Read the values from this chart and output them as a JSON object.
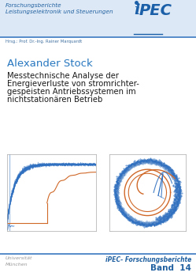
{
  "bg_color": "#ffffff",
  "header_bg": "#dce8f5",
  "header_text1": "Forschungsberichte",
  "header_text2": "Leistungselektronik und Steuerungen",
  "header_color": "#2060a0",
  "hrsg_text": "Hrsg.: Prof. Dr.-Ing. Rainer Marquardt",
  "hrsg_color": "#4070a0",
  "author": "Alexander Stock",
  "author_color": "#2878c0",
  "title_line1": "Messtechnische Analyse der",
  "title_line2": "Energieverluste von stromrichter-",
  "title_line3": "gespeisten Antriebssystemen im",
  "title_line4": "nichtstationären Betrieb",
  "title_color": "#1a1a1a",
  "footer_text1": "iPEC- Forschungsberichte",
  "footer_text2": "Band  14",
  "footer_color": "#2060a0",
  "separator_color": "#3878c0",
  "plot_blue": "#3070c0",
  "plot_blue_light": "#70a0d8",
  "plot_orange": "#d06828",
  "ipec_blue": "#1a5fa8",
  "uni_color": "#999999"
}
